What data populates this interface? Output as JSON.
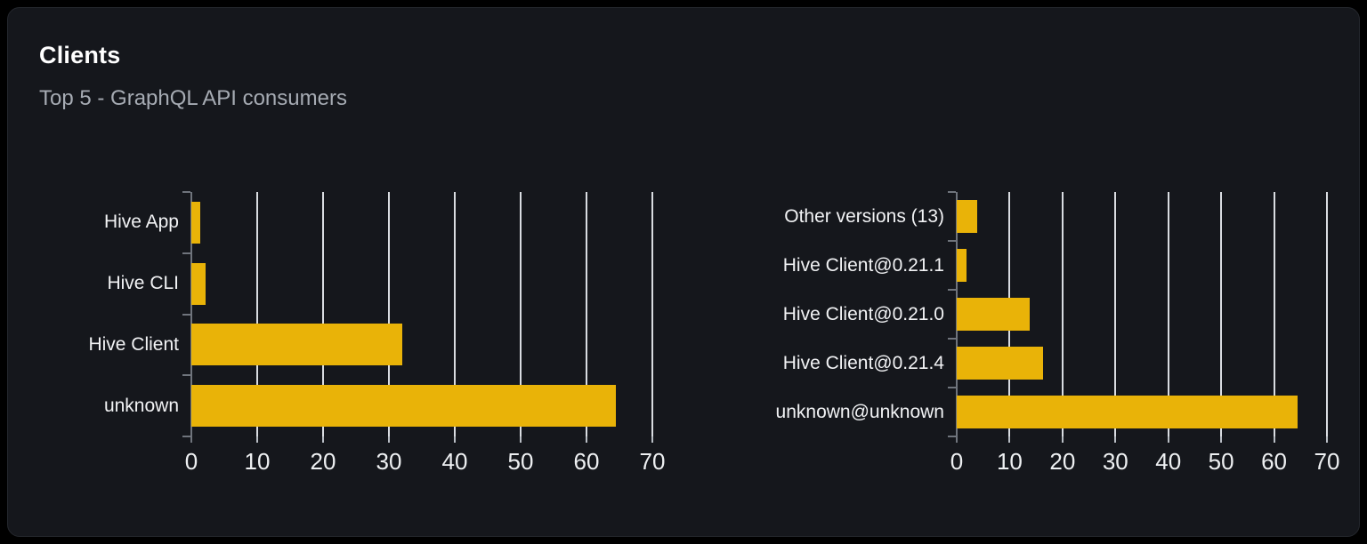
{
  "card": {
    "title": "Clients",
    "subtitle": "Top 5 - GraphQL API consumers"
  },
  "colors": {
    "page_bg": "#000000",
    "card_bg": "#15171c",
    "card_border": "#24272d",
    "bar": "#e9b308",
    "gridline": "#d9dce1",
    "axis": "#6f747c",
    "title_text": "#ffffff",
    "subtitle_text": "#a6abb3",
    "label_text": "#f2f3f5"
  },
  "chart_data": [
    {
      "type": "bar",
      "orientation": "horizontal",
      "title": "",
      "categories": [
        "Hive App",
        "Hive CLI",
        "Hive Client",
        "unknown"
      ],
      "values": [
        1.4,
        2.2,
        32,
        64.4
      ],
      "xlim": [
        0,
        70
      ],
      "xticks": [
        0,
        10,
        20,
        30,
        40,
        50,
        60,
        70
      ],
      "grid": true,
      "legend": "none",
      "bar_color": "#e9b308"
    },
    {
      "type": "bar",
      "orientation": "horizontal",
      "title": "",
      "categories": [
        "Other versions (13)",
        "Hive Client@0.21.1",
        "Hive Client@0.21.0",
        "Hive Client@0.21.4",
        "unknown@unknown"
      ],
      "values": [
        3.9,
        1.8,
        13.8,
        16.4,
        64.4
      ],
      "xlim": [
        0,
        70
      ],
      "xticks": [
        0,
        10,
        20,
        30,
        40,
        50,
        60,
        70
      ],
      "grid": true,
      "legend": "none",
      "bar_color": "#e9b308"
    }
  ]
}
